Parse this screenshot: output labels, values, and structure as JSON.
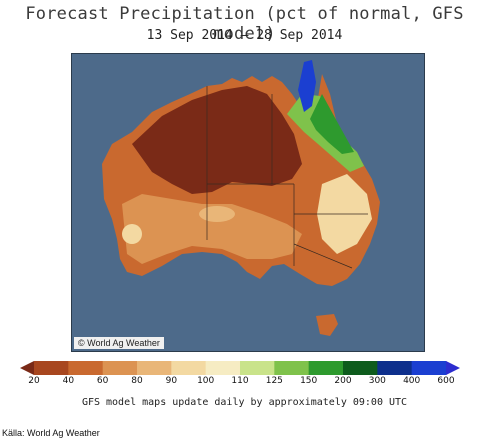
{
  "title": "Forecast Precipitation (pct of normal, GFS model)",
  "subtitle": "13 Sep 2014 – 28 Sep 2014",
  "map": {
    "copyright": "© World Ag Weather",
    "ocean_color": "#4d6a8a",
    "land_dry_color": "#7a2a17"
  },
  "legend": {
    "labels": [
      "20",
      "40",
      "60",
      "80",
      "90",
      "100",
      "110",
      "125",
      "150",
      "200",
      "300",
      "400",
      "600"
    ],
    "colors": [
      "#7a2a17",
      "#a8471f",
      "#c9692f",
      "#dc9352",
      "#e9b678",
      "#f3d9a2",
      "#f6ecc3",
      "#c9e38a",
      "#7fc24b",
      "#2e9a2e",
      "#0e5c1d",
      "#0d2f8c",
      "#1b3fd1",
      "#2d2dcf"
    ]
  },
  "note": "GFS model maps update daily by approximately 09:00 UTC",
  "source": "Källa: World Ag Weather"
}
